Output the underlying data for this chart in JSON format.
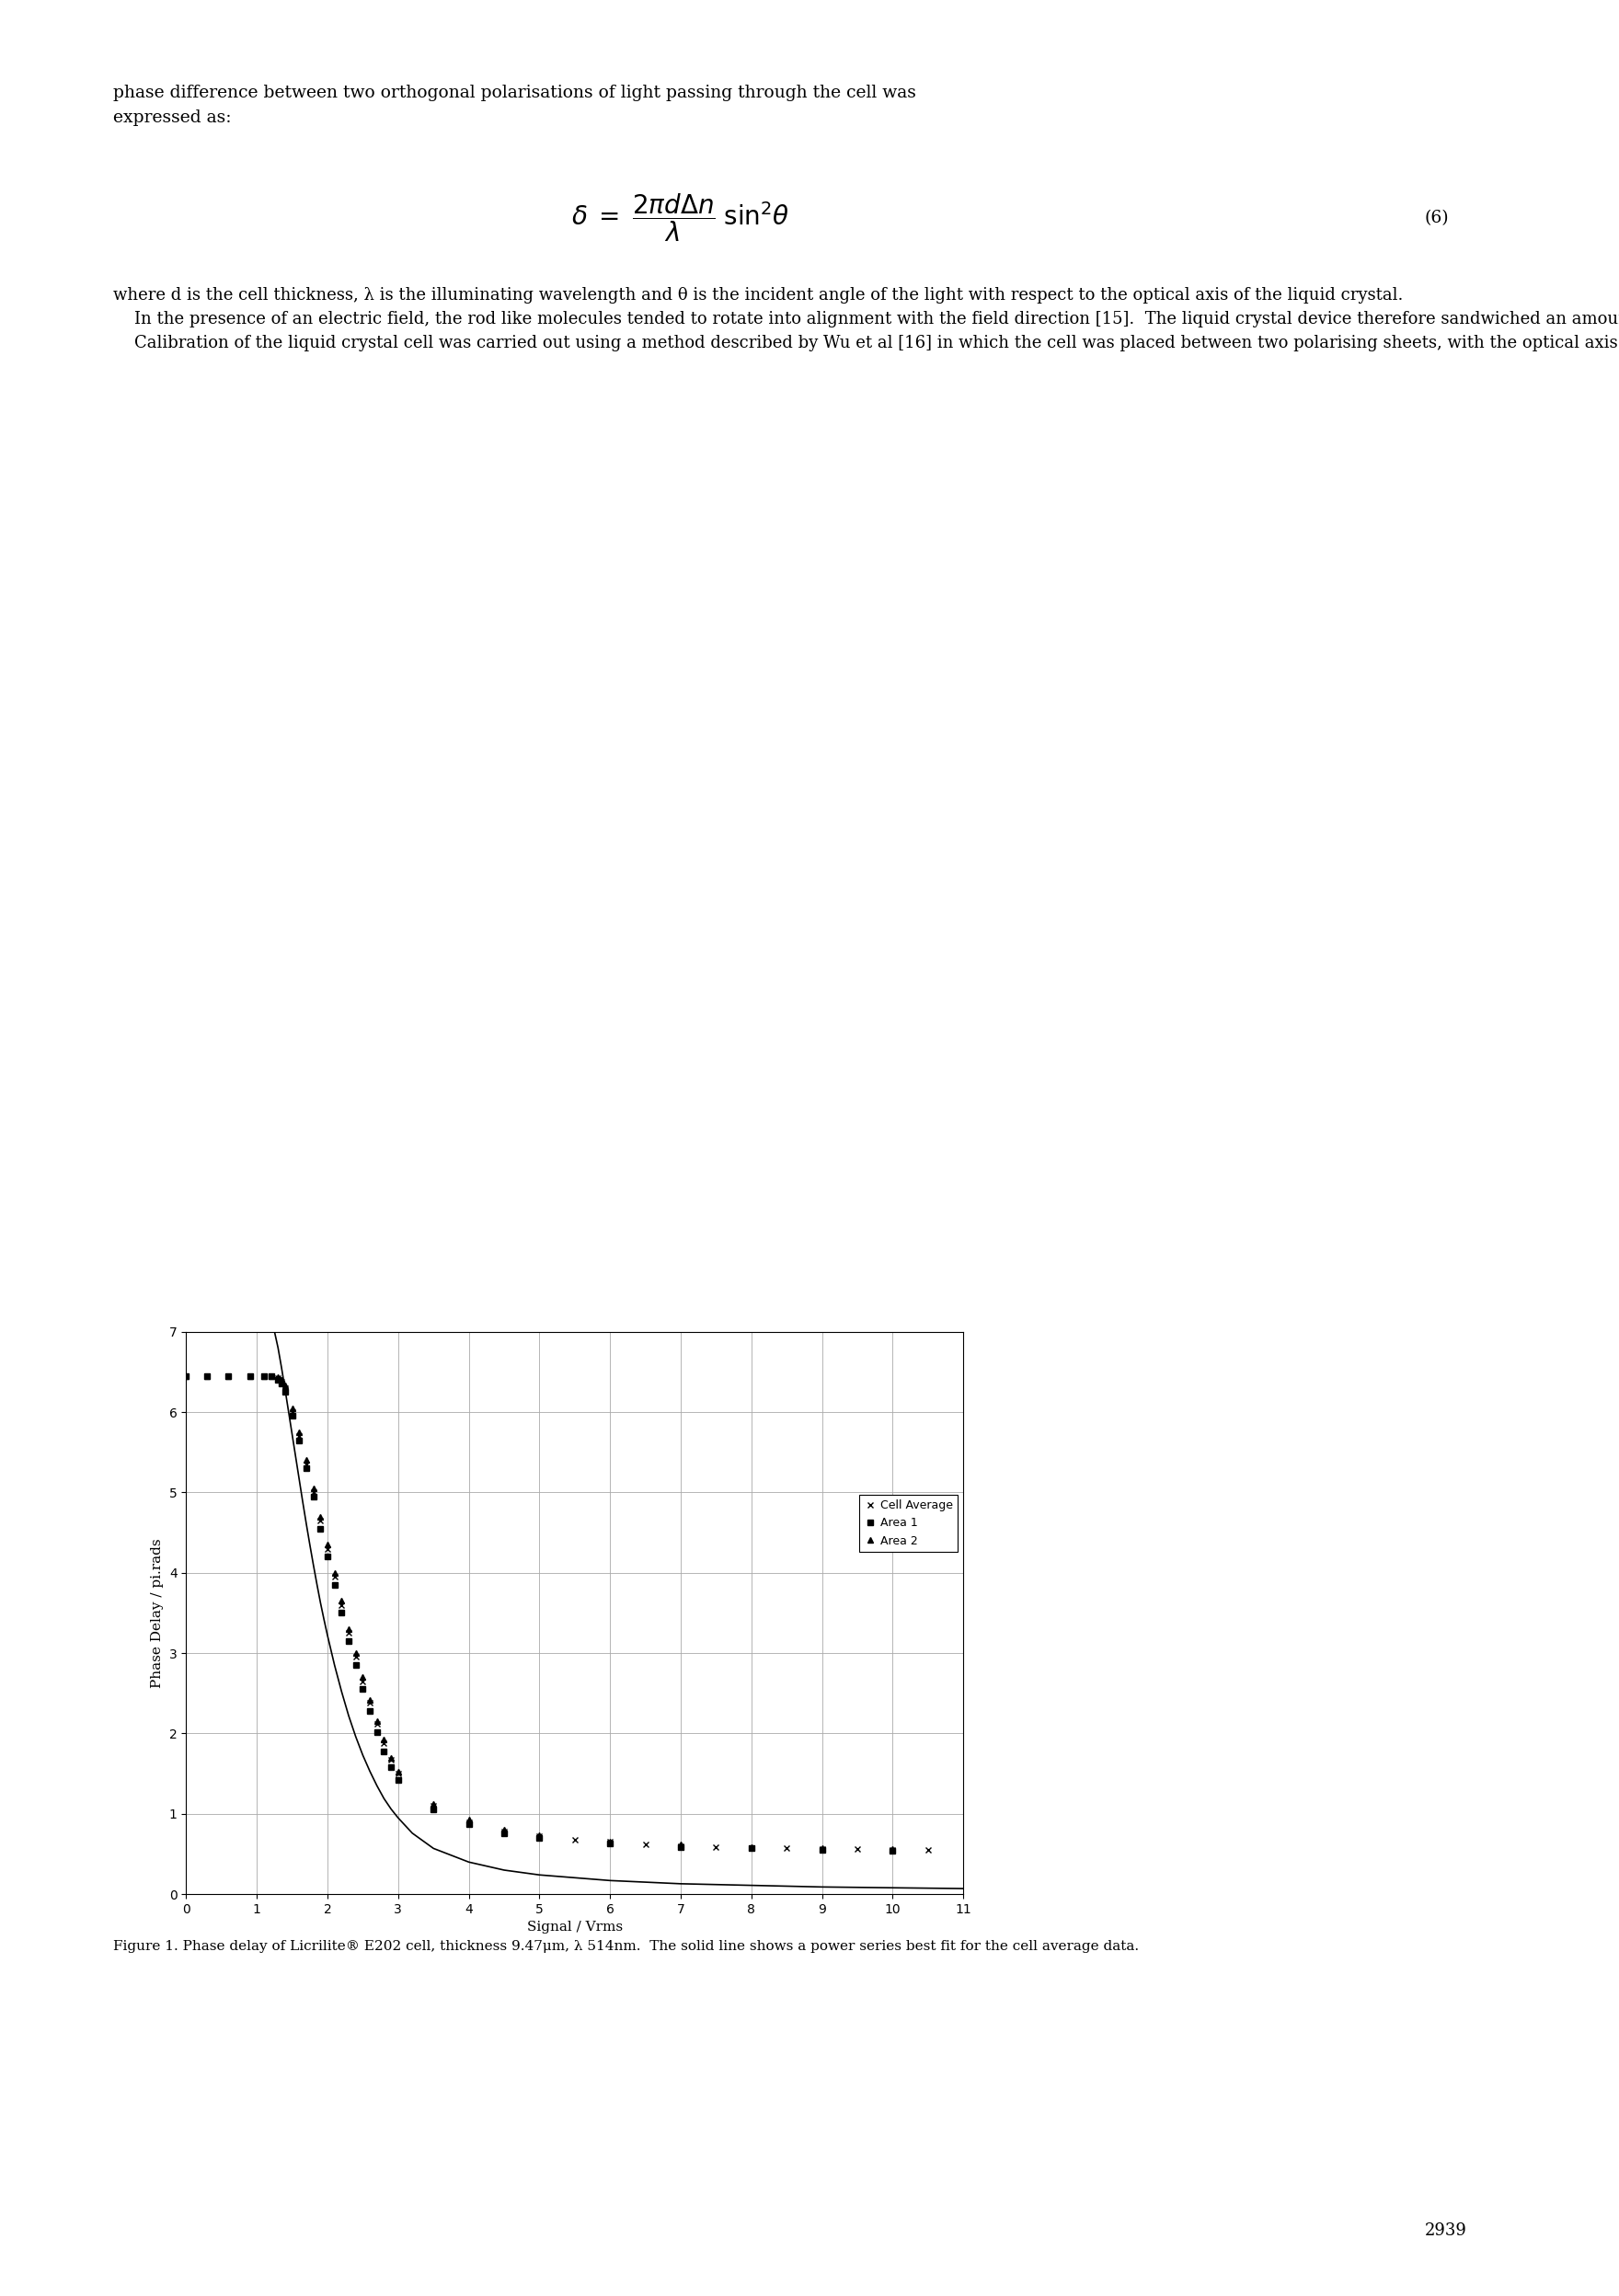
{
  "title_caption": "Figure 1. Phase delay of Licrilite® E202 cell, thickness 9.47μm, λ 514nm.  The solid line shows a power series best fit for the cell average data.",
  "xlabel": "Signal / Vrms",
  "ylabel": "Phase Delay / pi.rads",
  "xlim": [
    0,
    11
  ],
  "ylim": [
    0,
    7
  ],
  "xticks": [
    0,
    1,
    2,
    3,
    4,
    5,
    6,
    7,
    8,
    9,
    10,
    11
  ],
  "yticks": [
    0,
    1,
    2,
    3,
    4,
    5,
    6,
    7
  ],
  "cell_average_x": [
    0.0,
    0.3,
    0.6,
    0.9,
    1.1,
    1.2,
    1.3,
    1.35,
    1.4,
    1.5,
    1.6,
    1.7,
    1.8,
    1.9,
    2.0,
    2.1,
    2.2,
    2.3,
    2.4,
    2.5,
    2.6,
    2.7,
    2.8,
    2.9,
    3.0,
    3.5,
    4.0,
    4.5,
    5.0,
    5.5,
    6.0,
    6.5,
    7.0,
    7.5,
    8.0,
    8.5,
    9.0,
    9.5,
    10.0,
    10.5
  ],
  "cell_average_y": [
    6.45,
    6.45,
    6.45,
    6.45,
    6.45,
    6.45,
    6.42,
    6.38,
    6.3,
    6.0,
    5.7,
    5.35,
    5.0,
    4.65,
    4.3,
    3.95,
    3.6,
    3.25,
    2.95,
    2.65,
    2.38,
    2.12,
    1.88,
    1.67,
    1.5,
    1.1,
    0.9,
    0.78,
    0.72,
    0.68,
    0.65,
    0.62,
    0.6,
    0.59,
    0.58,
    0.57,
    0.56,
    0.56,
    0.55,
    0.55
  ],
  "area1_x": [
    0.0,
    0.3,
    0.6,
    0.9,
    1.1,
    1.2,
    1.3,
    1.35,
    1.4,
    1.5,
    1.6,
    1.7,
    1.8,
    1.9,
    2.0,
    2.1,
    2.2,
    2.3,
    2.4,
    2.5,
    2.6,
    2.7,
    2.8,
    2.9,
    3.0,
    3.5,
    4.0,
    4.5,
    5.0,
    6.0,
    7.0,
    8.0,
    9.0,
    10.0
  ],
  "area1_y": [
    6.45,
    6.45,
    6.45,
    6.45,
    6.45,
    6.45,
    6.4,
    6.35,
    6.25,
    5.95,
    5.65,
    5.3,
    4.95,
    4.55,
    4.2,
    3.85,
    3.5,
    3.15,
    2.85,
    2.55,
    2.28,
    2.02,
    1.78,
    1.58,
    1.42,
    1.05,
    0.87,
    0.76,
    0.7,
    0.63,
    0.59,
    0.57,
    0.55,
    0.54
  ],
  "area2_x": [
    0.0,
    0.3,
    0.6,
    0.9,
    1.1,
    1.2,
    1.3,
    1.35,
    1.4,
    1.5,
    1.6,
    1.7,
    1.8,
    1.9,
    2.0,
    2.1,
    2.2,
    2.3,
    2.4,
    2.5,
    2.6,
    2.7,
    2.8,
    2.9,
    3.0,
    3.5,
    4.0,
    4.5,
    5.0,
    6.0,
    7.0,
    8.0,
    9.0,
    10.0
  ],
  "area2_y": [
    6.45,
    6.45,
    6.45,
    6.45,
    6.45,
    6.45,
    6.44,
    6.4,
    6.33,
    6.05,
    5.75,
    5.4,
    5.05,
    4.7,
    4.35,
    4.0,
    3.65,
    3.3,
    3.0,
    2.7,
    2.42,
    2.16,
    1.92,
    1.7,
    1.53,
    1.12,
    0.93,
    0.8,
    0.74,
    0.66,
    0.62,
    0.59,
    0.57,
    0.56
  ],
  "fit_x": [
    1.25,
    1.3,
    1.35,
    1.4,
    1.45,
    1.5,
    1.55,
    1.6,
    1.65,
    1.7,
    1.75,
    1.8,
    1.85,
    1.9,
    1.95,
    2.0,
    2.1,
    2.2,
    2.3,
    2.4,
    2.5,
    2.6,
    2.7,
    2.8,
    2.9,
    3.0,
    3.2,
    3.5,
    4.0,
    4.5,
    5.0,
    6.0,
    7.0,
    8.0,
    9.0,
    10.0,
    11.0
  ],
  "fit_y": [
    7.0,
    6.8,
    6.55,
    6.28,
    6.0,
    5.72,
    5.44,
    5.16,
    4.88,
    4.61,
    4.35,
    4.1,
    3.86,
    3.63,
    3.42,
    3.22,
    2.85,
    2.52,
    2.22,
    1.96,
    1.73,
    1.53,
    1.35,
    1.19,
    1.06,
    0.95,
    0.76,
    0.57,
    0.4,
    0.3,
    0.24,
    0.17,
    0.13,
    0.11,
    0.09,
    0.08,
    0.07
  ],
  "legend_labels": [
    "x  Cell Average",
    "•  Area 1",
    "▲  Area 2"
  ],
  "background_color": "#ffffff",
  "grid_color": "#aaaaaa",
  "plot_bg_color": "#ffffff",
  "text_color": "#000000",
  "line_color": "#000000",
  "body_text_1": "phase difference between two orthogonal polarisations of light passing through the cell was expressed as:",
  "body_text_2": "where d is the cell thickness, λ is the illuminating wavelength and θ is the incident angle of the light with respect to the optical axis of the liquid crystal.\n    In the presence of an electric field, the rod like molecules tended to rotate into alignment with the field direction [15].  The liquid crystal device therefore sandwiched an amount of liquid crystal between two plates of glass that contained an alignment layer and two transparent electrodes, such that a field was created between the two glass layers.  As the liquid crystal molecules rotated under an applied potential difference, the birfringence for a beam normal to the cell was reduced, such that for high voltages the birefringence tended towards zero. Depending on the liquid crystal used and the wavelength of the light, over a range 0 to 10 Volts (ac rms) the birefringence of a crystal changed by several wavelengths.\n    Calibration of the liquid crystal cell was carried out using a method described by Wu et al [16] in which the cell was placed between two polarising sheets, with the optical axis of the cell at 45° to the initial polarisation angle.  As the ac signal voltage was increased, a large area photodiode was used to monitor the intensities of the ordinary and extraordinary beams passing through the cell.  A simple calculation from this data provided an accurate measure of the birefringence for the cell, specific to the wavelength of light used, over  a range of voltages. Using an Argon ion laser, two sets of readings were taken with 3mm diameter spots, in a corner and along an edge of the square cell.  A third set was taken using a beam that covered the entire 10mm×10mm area of liquid crystal in the cell such that an average birefringence was calculated.",
  "page_number": "2939"
}
